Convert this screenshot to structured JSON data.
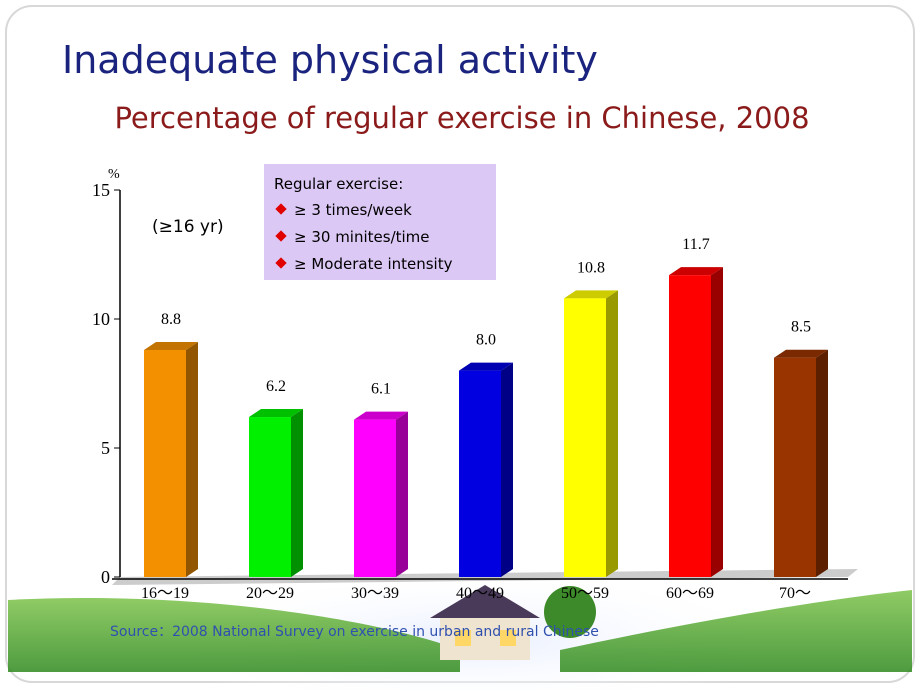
{
  "title": "Inadequate physical activity",
  "chart_data": {
    "type": "bar3d",
    "title": "Percentage of regular exercise in Chinese, 2008",
    "y_unit": "%",
    "annotation": "(≥16 yr)",
    "categories": [
      "16～19",
      "20～29",
      "30～39",
      "40～49",
      "50～59",
      "60～69",
      "70～"
    ],
    "values": [
      8.8,
      6.2,
      6.1,
      8.0,
      10.8,
      11.7,
      8.5
    ],
    "value_labels": [
      "8.8",
      "6.2",
      "6.1",
      "8.0",
      "10.8",
      "11.7",
      "8.5"
    ],
    "colors": [
      "#f39000",
      "#00f000",
      "#ff00ff",
      "#0000e0",
      "#ffff00",
      "#ff0000",
      "#993300"
    ],
    "ylim": [
      0,
      15
    ],
    "yticks": [
      0,
      5,
      10,
      15
    ],
    "legend": {
      "title": "Regular exercise:",
      "items": [
        "≥ 3 times/week",
        "≥ 30 minites/time",
        "≥ Moderate intensity"
      ]
    }
  },
  "source": "Source：2008 National Survey on exercise in urban and rural  Chinese"
}
